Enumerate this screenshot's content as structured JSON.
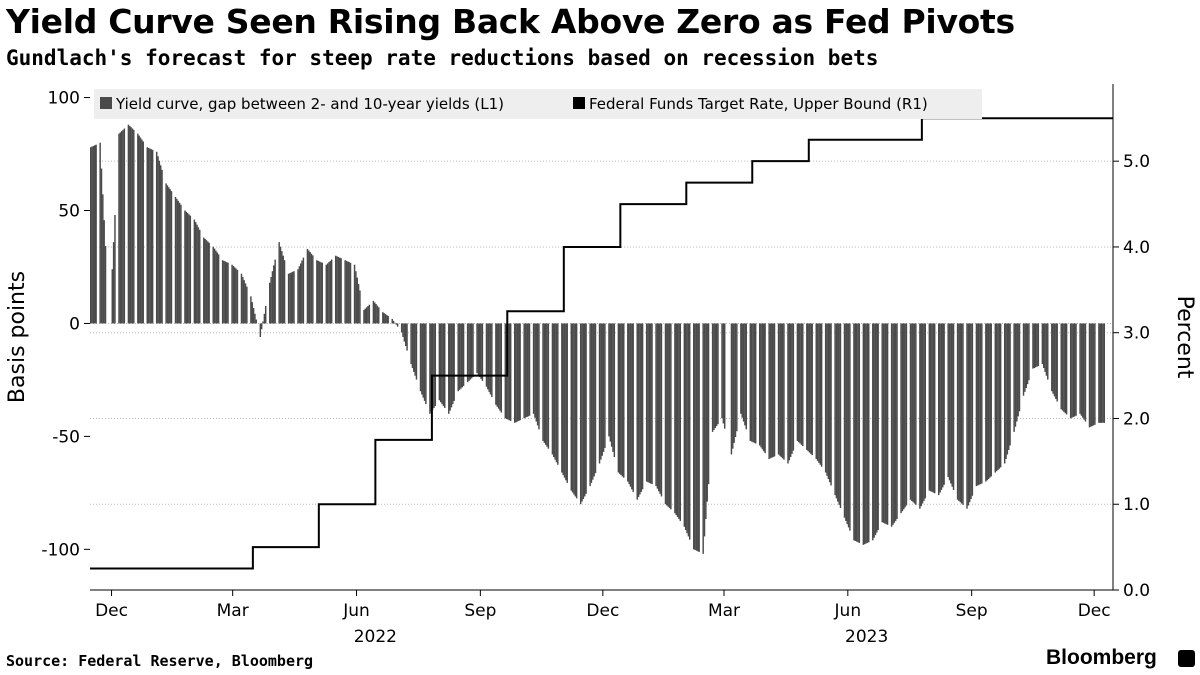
{
  "title": "Yield Curve Seen Rising Back Above Zero as Fed Pivots",
  "subtitle": "Gundlach's forecast for steep rate reductions based on recession bets",
  "source": "Source: Federal Reserve, Bloomberg",
  "brand": "Bloomberg",
  "colors": {
    "bars": "#4a4a4a",
    "line": "#000000",
    "legend_bg": "#eeeeee",
    "grid": "#bbbbbb"
  },
  "chart_data": {
    "type": "bar",
    "xlabel": "",
    "ylabel": "Basis points",
    "ylabel_right": "Percent",
    "x_range": [
      "2021-11-15",
      "2023-12-15"
    ],
    "ylim_left": [
      -118,
      106
    ],
    "ylim_right": [
      0,
      5.9
    ],
    "grid": true,
    "legend_position": "top",
    "legend": [
      "Yield curve, gap between 2- and 10-year yields (L1)",
      "Federal Funds Target Rate, Upper Bound (R1)"
    ],
    "left_ticks": [
      {
        "value": 100,
        "label": "100"
      },
      {
        "value": 50,
        "label": "50"
      },
      {
        "value": 0,
        "label": "0"
      },
      {
        "value": -50,
        "label": "-50"
      },
      {
        "value": -100,
        "label": "-100"
      }
    ],
    "right_ticks": [
      {
        "value": 5.0,
        "label": "5.0"
      },
      {
        "value": 4.0,
        "label": "4.0"
      },
      {
        "value": 3.0,
        "label": "3.0"
      },
      {
        "value": 2.0,
        "label": "2.0"
      },
      {
        "value": 1.0,
        "label": "1.0"
      },
      {
        "value": 0.0,
        "label": "0.0"
      }
    ],
    "x_ticks": [
      {
        "date": "2021-12-01",
        "label": "Dec"
      },
      {
        "date": "2022-03-01",
        "label": "Mar"
      },
      {
        "date": "2022-06-01",
        "label": "Jun"
      },
      {
        "date": "2022-09-01",
        "label": "Sep"
      },
      {
        "date": "2022-12-01",
        "label": "Dec"
      },
      {
        "date": "2023-03-01",
        "label": "Mar"
      },
      {
        "date": "2023-06-01",
        "label": "Jun"
      },
      {
        "date": "2023-09-01",
        "label": "Sep"
      },
      {
        "date": "2023-12-01",
        "label": "Dec"
      }
    ],
    "year_labels": [
      {
        "date": "2022-06-15",
        "label": "2022"
      },
      {
        "date": "2023-06-15",
        "label": "2023"
      }
    ],
    "series": [
      {
        "name": "Yield curve, gap between 2- and 10-year yields (L1)",
        "type": "bar",
        "x": [
          "2021-11-15",
          "2021-11-22",
          "2021-11-29",
          "2021-12-06",
          "2021-12-13",
          "2021-12-20",
          "2021-12-27",
          "2022-01-03",
          "2022-01-10",
          "2022-01-17",
          "2022-01-24",
          "2022-01-31",
          "2022-02-07",
          "2022-02-14",
          "2022-02-21",
          "2022-02-28",
          "2022-03-07",
          "2022-03-14",
          "2022-03-21",
          "2022-03-28",
          "2022-04-04",
          "2022-04-11",
          "2022-04-18",
          "2022-04-25",
          "2022-05-02",
          "2022-05-09",
          "2022-05-16",
          "2022-05-23",
          "2022-05-30",
          "2022-06-06",
          "2022-06-13",
          "2022-06-20",
          "2022-06-27",
          "2022-07-04",
          "2022-07-11",
          "2022-07-18",
          "2022-07-25",
          "2022-08-01",
          "2022-08-08",
          "2022-08-15",
          "2022-08-22",
          "2022-08-29",
          "2022-09-05",
          "2022-09-12",
          "2022-09-19",
          "2022-09-26",
          "2022-10-03",
          "2022-10-10",
          "2022-10-17",
          "2022-10-24",
          "2022-10-31",
          "2022-11-07",
          "2022-11-14",
          "2022-11-21",
          "2022-11-28",
          "2022-12-05",
          "2022-12-12",
          "2022-12-19",
          "2022-12-26",
          "2023-01-02",
          "2023-01-09",
          "2023-01-16",
          "2023-01-23",
          "2023-01-30",
          "2023-02-06",
          "2023-02-13",
          "2023-02-20",
          "2023-02-27",
          "2023-03-06",
          "2023-03-13",
          "2023-03-20",
          "2023-03-27",
          "2023-04-03",
          "2023-04-10",
          "2023-04-17",
          "2023-04-24",
          "2023-05-01",
          "2023-05-08",
          "2023-05-15",
          "2023-05-22",
          "2023-05-29",
          "2023-06-05",
          "2023-06-12",
          "2023-06-19",
          "2023-06-26",
          "2023-07-03",
          "2023-07-10",
          "2023-07-17",
          "2023-07-24",
          "2023-07-31",
          "2023-08-07",
          "2023-08-14",
          "2023-08-21",
          "2023-08-28",
          "2023-09-04",
          "2023-09-11",
          "2023-09-18",
          "2023-09-25",
          "2023-10-02",
          "2023-10-09",
          "2023-10-16",
          "2023-10-23",
          "2023-10-30",
          "2023-11-06",
          "2023-11-13",
          "2023-11-20",
          "2023-11-27",
          "2023-12-04"
        ],
        "values": [
          78,
          80,
          0,
          84,
          88,
          84,
          78,
          76,
          62,
          56,
          50,
          46,
          38,
          34,
          28,
          26,
          22,
          12,
          -6,
          18,
          36,
          22,
          24,
          33,
          28,
          26,
          30,
          28,
          26,
          6,
          10,
          5,
          2,
          -4,
          -18,
          -30,
          -40,
          -34,
          -40,
          -30,
          -26,
          -22,
          -28,
          -36,
          -42,
          -44,
          -42,
          -40,
          -52,
          -58,
          -66,
          -74,
          -80,
          -72,
          -62,
          -50,
          -66,
          -70,
          -78,
          -70,
          -72,
          -80,
          -84,
          -90,
          -100,
          -102,
          -48,
          -42,
          -58,
          -40,
          -52,
          -54,
          -60,
          -58,
          -62,
          -52,
          -56,
          -60,
          -66,
          -76,
          -86,
          -96,
          -98,
          -96,
          -88,
          -90,
          -84,
          -78,
          -82,
          -74,
          -76,
          -68,
          -78,
          -82,
          -72,
          -70,
          -66,
          -62,
          -48,
          -32,
          -20,
          -18,
          -30,
          -38,
          -42,
          -40,
          -46,
          -44
        ],
        "gap_dates": [
          "2021-11-29",
          "2023-03-03"
        ]
      },
      {
        "name": "Federal Funds Target Rate, Upper Bound (R1)",
        "type": "step",
        "x": [
          "2021-11-15",
          "2022-03-16",
          "2022-05-04",
          "2022-06-15",
          "2022-07-27",
          "2022-09-21",
          "2022-11-02",
          "2022-12-14",
          "2023-02-01",
          "2023-03-22",
          "2023-05-03",
          "2023-07-26",
          "2023-12-15"
        ],
        "values": [
          0.25,
          0.5,
          1.0,
          1.75,
          2.5,
          3.25,
          4.0,
          4.5,
          4.75,
          5.0,
          5.25,
          5.5,
          5.5
        ]
      }
    ]
  }
}
